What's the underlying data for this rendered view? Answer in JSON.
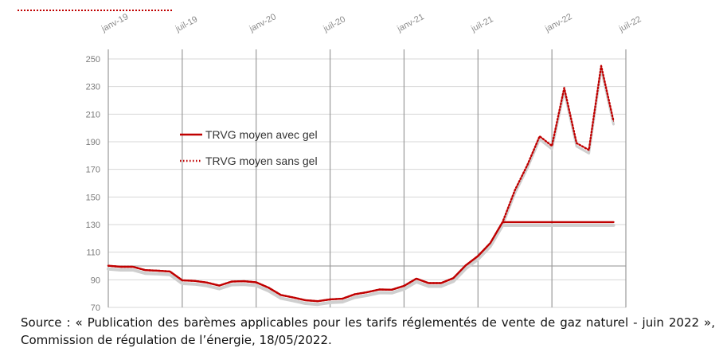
{
  "chart_data": {
    "type": "line",
    "title": "",
    "xlabel": "",
    "ylabel": "",
    "ylim": [
      70,
      260
    ],
    "y_ticks": [
      70,
      90,
      110,
      130,
      150,
      170,
      190,
      210,
      230,
      250
    ],
    "x_ticks": [
      "janv-19",
      "juil-19",
      "janv-20",
      "juil-20",
      "janv-21",
      "juil-21",
      "janv-22",
      "juil-22"
    ],
    "grid": "both",
    "legend_position": "center-left",
    "x": [
      "2019-01",
      "2019-02",
      "2019-03",
      "2019-04",
      "2019-05",
      "2019-06",
      "2019-07",
      "2019-08",
      "2019-09",
      "2019-10",
      "2019-11",
      "2019-12",
      "2020-01",
      "2020-02",
      "2020-03",
      "2020-04",
      "2020-05",
      "2020-06",
      "2020-07",
      "2020-08",
      "2020-09",
      "2020-10",
      "2020-11",
      "2020-12",
      "2021-01",
      "2021-02",
      "2021-03",
      "2021-04",
      "2021-05",
      "2021-06",
      "2021-07",
      "2021-08",
      "2021-09",
      "2021-10",
      "2021-11",
      "2021-12",
      "2022-01",
      "2022-02",
      "2022-03",
      "2022-04",
      "2022-05",
      "2022-06"
    ],
    "series": [
      {
        "name": "TRVG moyen avec gel",
        "style": "solid",
        "color": "#c00000",
        "values": [
          100.2,
          99.4,
          99.4,
          97.0,
          96.6,
          96.0,
          89.6,
          89.2,
          88.0,
          85.8,
          88.7,
          89.0,
          88.2,
          84.3,
          79.0,
          77.2,
          75.2,
          74.5,
          75.8,
          76.3,
          79.5,
          81.0,
          83.0,
          82.8,
          85.6,
          90.8,
          87.6,
          87.6,
          91.2,
          100.4,
          107.2,
          116.6,
          131.8,
          131.8,
          131.8,
          131.8,
          131.8,
          131.8,
          131.8,
          131.8,
          131.8,
          131.8
        ]
      },
      {
        "name": "TRVG moyen sans gel",
        "style": "dotted",
        "color": "#c00000",
        "values": [
          100.2,
          99.4,
          99.4,
          97.0,
          96.6,
          96.0,
          89.6,
          89.2,
          88.0,
          85.8,
          88.7,
          89.0,
          88.2,
          84.3,
          79.0,
          77.2,
          75.2,
          74.5,
          75.8,
          76.3,
          79.5,
          81.0,
          83.0,
          82.8,
          85.6,
          90.8,
          87.6,
          87.6,
          91.2,
          100.4,
          107.2,
          116.6,
          131.8,
          155.0,
          173.0,
          194.0,
          187.0,
          229.0,
          189.0,
          184.0,
          245.0,
          205.0
        ]
      }
    ]
  },
  "source_text": "Source : « Publication des barèmes applicables pour les tarifs réglementés de vente de gaz naturel - juin 2022 », Commission de régulation de l’énergie, 18/05/2022."
}
